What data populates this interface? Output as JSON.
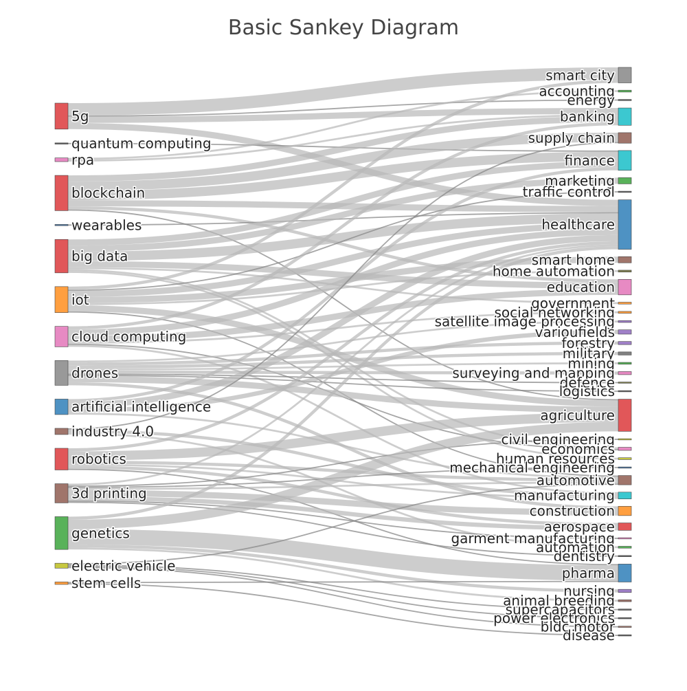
{
  "chart_data": {
    "type": "sankey",
    "title": "Basic Sankey Diagram",
    "sources": [
      {
        "name": "5g",
        "color": "#e15759"
      },
      {
        "name": "quantum computing",
        "color": "#666666"
      },
      {
        "name": "rpa",
        "color": "#e78ac3"
      },
      {
        "name": "blockchain",
        "color": "#e15759"
      },
      {
        "name": "wearables",
        "color": "#4e79a7"
      },
      {
        "name": "big data",
        "color": "#e15759"
      },
      {
        "name": "iot",
        "color": "#ff9f40"
      },
      {
        "name": "cloud computing",
        "color": "#e78ac3"
      },
      {
        "name": "drones",
        "color": "#999999"
      },
      {
        "name": "artificial intelligence",
        "color": "#4e92c3"
      },
      {
        "name": "industry 4.0",
        "color": "#a0756b"
      },
      {
        "name": "robotics",
        "color": "#e15759"
      },
      {
        "name": "3d printing",
        "color": "#a0756b"
      },
      {
        "name": "genetics",
        "color": "#59b25a"
      },
      {
        "name": "electric vehicle",
        "color": "#c7c840"
      },
      {
        "name": "stem cells",
        "color": "#ff9f40"
      }
    ],
    "targets": [
      {
        "name": "smart city",
        "color": "#999999"
      },
      {
        "name": "accounting",
        "color": "#59b25a"
      },
      {
        "name": "energy",
        "color": "#666666"
      },
      {
        "name": "banking",
        "color": "#3cc8d0"
      },
      {
        "name": "supply chain",
        "color": "#a0756b"
      },
      {
        "name": "finance",
        "color": "#3cc8d0"
      },
      {
        "name": "marketing",
        "color": "#59b25a"
      },
      {
        "name": "traffic control",
        "color": "#666666"
      },
      {
        "name": "healthcare",
        "color": "#4e92c3"
      },
      {
        "name": "smart home",
        "color": "#a0756b"
      },
      {
        "name": "home automation",
        "color": "#808050"
      },
      {
        "name": "education",
        "color": "#e78ac3"
      },
      {
        "name": "government",
        "color": "#ff9f40"
      },
      {
        "name": "social networking",
        "color": "#ff9f40"
      },
      {
        "name": "satellite image processing",
        "color": "#a080c8"
      },
      {
        "name": "varioufields",
        "color": "#a080c8"
      },
      {
        "name": "forestry",
        "color": "#a080c8"
      },
      {
        "name": "military",
        "color": "#808080"
      },
      {
        "name": "mining",
        "color": "#59b25a"
      },
      {
        "name": "surveying and mapping",
        "color": "#e78ac3"
      },
      {
        "name": "defence",
        "color": "#808050"
      },
      {
        "name": "logistics",
        "color": "#666666"
      },
      {
        "name": "agriculture",
        "color": "#e15759"
      },
      {
        "name": "civil engineering",
        "color": "#c7c840"
      },
      {
        "name": "economics",
        "color": "#e78ac3"
      },
      {
        "name": "human resources",
        "color": "#c7c840"
      },
      {
        "name": "mechanical engineering",
        "color": "#4e79a7"
      },
      {
        "name": "automotive",
        "color": "#a0756b"
      },
      {
        "name": "manufacturing",
        "color": "#3cc8d0"
      },
      {
        "name": "construction",
        "color": "#ff9f40"
      },
      {
        "name": "aerospace",
        "color": "#e15759"
      },
      {
        "name": "garment manufacturing",
        "color": "#e78ac3"
      },
      {
        "name": "automation",
        "color": "#59b25a"
      },
      {
        "name": "dentistry",
        "color": "#666666"
      },
      {
        "name": "pharma",
        "color": "#4e92c3"
      },
      {
        "name": "nursing",
        "color": "#a080c8"
      },
      {
        "name": "animal breeding",
        "color": "#a0756b"
      },
      {
        "name": "supercapacitors",
        "color": "#666666"
      },
      {
        "name": "power electronics",
        "color": "#666666"
      },
      {
        "name": "bldc motor",
        "color": "#a0756b"
      },
      {
        "name": "disease",
        "color": "#666666"
      }
    ],
    "links": [
      {
        "source": "5g",
        "target": "smart city",
        "value": 2
      },
      {
        "source": "5g",
        "target": "banking",
        "value": 1
      },
      {
        "source": "5g",
        "target": "healthcare",
        "value": 1
      },
      {
        "source": "5g",
        "target": "energy",
        "value": 0.2
      },
      {
        "source": "quantum computing",
        "target": "finance",
        "value": 0.2
      },
      {
        "source": "rpa",
        "target": "accounting",
        "value": 0.3
      },
      {
        "source": "rpa",
        "target": "banking",
        "value": 0.3
      },
      {
        "source": "blockchain",
        "target": "finance",
        "value": 1.5
      },
      {
        "source": "blockchain",
        "target": "supply chain",
        "value": 1.5
      },
      {
        "source": "blockchain",
        "target": "banking",
        "value": 1
      },
      {
        "source": "blockchain",
        "target": "healthcare",
        "value": 1
      },
      {
        "source": "blockchain",
        "target": "education",
        "value": 0.5
      },
      {
        "source": "blockchain",
        "target": "agriculture",
        "value": 0.2
      },
      {
        "source": "wearables",
        "target": "healthcare",
        "value": 0.2
      },
      {
        "source": "big data",
        "target": "healthcare",
        "value": 1.5
      },
      {
        "source": "big data",
        "target": "marketing",
        "value": 1
      },
      {
        "source": "big data",
        "target": "finance",
        "value": 1
      },
      {
        "source": "big data",
        "target": "education",
        "value": 1
      },
      {
        "source": "big data",
        "target": "government",
        "value": 0.3
      },
      {
        "source": "iot",
        "target": "smart home",
        "value": 1
      },
      {
        "source": "iot",
        "target": "healthcare",
        "value": 1
      },
      {
        "source": "iot",
        "target": "agriculture",
        "value": 1
      },
      {
        "source": "iot",
        "target": "home automation",
        "value": 0.3
      },
      {
        "source": "iot",
        "target": "smart city",
        "value": 0.5
      },
      {
        "source": "iot",
        "target": "traffic control",
        "value": 0.2
      },
      {
        "source": "iot",
        "target": "automotive",
        "value": 0.2
      },
      {
        "source": "cloud computing",
        "target": "education",
        "value": 1
      },
      {
        "source": "cloud computing",
        "target": "healthcare",
        "value": 1
      },
      {
        "source": "cloud computing",
        "target": "banking",
        "value": 0.5
      },
      {
        "source": "cloud computing",
        "target": "social networking",
        "value": 0.3
      },
      {
        "source": "cloud computing",
        "target": "manufacturing",
        "value": 0.3
      },
      {
        "source": "drones",
        "target": "agriculture",
        "value": 1
      },
      {
        "source": "drones",
        "target": "satellite image processing",
        "value": 0.3
      },
      {
        "source": "drones",
        "target": "forestry",
        "value": 0.5
      },
      {
        "source": "drones",
        "target": "military",
        "value": 0.5
      },
      {
        "source": "drones",
        "target": "mining",
        "value": 0.3
      },
      {
        "source": "drones",
        "target": "surveying and mapping",
        "value": 0.5
      },
      {
        "source": "drones",
        "target": "defence",
        "value": 0.2
      },
      {
        "source": "drones",
        "target": "logistics",
        "value": 0.2
      },
      {
        "source": "drones",
        "target": "construction",
        "value": 0.5
      },
      {
        "source": "artificial intelligence",
        "target": "healthcare",
        "value": 1
      },
      {
        "source": "artificial intelligence",
        "target": "varioufields",
        "value": 0.7
      },
      {
        "source": "artificial intelligence",
        "target": "finance",
        "value": 0.5
      },
      {
        "source": "artificial intelligence",
        "target": "automotive",
        "value": 0.3
      },
      {
        "source": "industry 4.0",
        "target": "manufacturing",
        "value": 0.5
      },
      {
        "source": "industry 4.0",
        "target": "automation",
        "value": 0.3
      },
      {
        "source": "industry 4.0",
        "target": "supply chain",
        "value": 0.2
      },
      {
        "source": "robotics",
        "target": "agriculture",
        "value": 1.5
      },
      {
        "source": "robotics",
        "target": "healthcare",
        "value": 0.5
      },
      {
        "source": "robotics",
        "target": "automotive",
        "value": 0.5
      },
      {
        "source": "robotics",
        "target": "aerospace",
        "value": 0.5
      },
      {
        "source": "robotics",
        "target": "manufacturing",
        "value": 0.3
      },
      {
        "source": "robotics",
        "target": "pharma",
        "value": 0.2
      },
      {
        "source": "3d printing",
        "target": "construction",
        "value": 1
      },
      {
        "source": "3d printing",
        "target": "aerospace",
        "value": 0.7
      },
      {
        "source": "3d printing",
        "target": "automotive",
        "value": 0.3
      },
      {
        "source": "3d printing",
        "target": "healthcare",
        "value": 0.3
      },
      {
        "source": "3d printing",
        "target": "dentistry",
        "value": 0.2
      },
      {
        "source": "3d printing",
        "target": "garment manufacturing",
        "value": 0.2
      },
      {
        "source": "3d printing",
        "target": "mechanical engineering",
        "value": 0.2
      },
      {
        "source": "3d printing",
        "target": "civil engineering",
        "value": 0.2
      },
      {
        "source": "genetics",
        "target": "pharma",
        "value": 2.5
      },
      {
        "source": "genetics",
        "target": "agriculture",
        "value": 1.5
      },
      {
        "source": "genetics",
        "target": "nursing",
        "value": 0.5
      },
      {
        "source": "genetics",
        "target": "animal breeding",
        "value": 0.3
      },
      {
        "source": "genetics",
        "target": "healthcare",
        "value": 0.5
      },
      {
        "source": "electric vehicle",
        "target": "automotive",
        "value": 0.2
      },
      {
        "source": "electric vehicle",
        "target": "supercapacitors",
        "value": 0.2
      },
      {
        "source": "electric vehicle",
        "target": "power electronics",
        "value": 0.2
      },
      {
        "source": "electric vehicle",
        "target": "bldc motor",
        "value": 0.2
      },
      {
        "source": "stem cells",
        "target": "disease",
        "value": 0.2
      },
      {
        "source": "stem cells",
        "target": "pharma",
        "value": 0.2
      },
      {
        "source": "big data",
        "target": "economics",
        "value": 0.3
      },
      {
        "source": "big data",
        "target": "human resources",
        "value": 0.3
      },
      {
        "source": "cloud computing",
        "target": "economics",
        "value": 0.2
      }
    ]
  }
}
